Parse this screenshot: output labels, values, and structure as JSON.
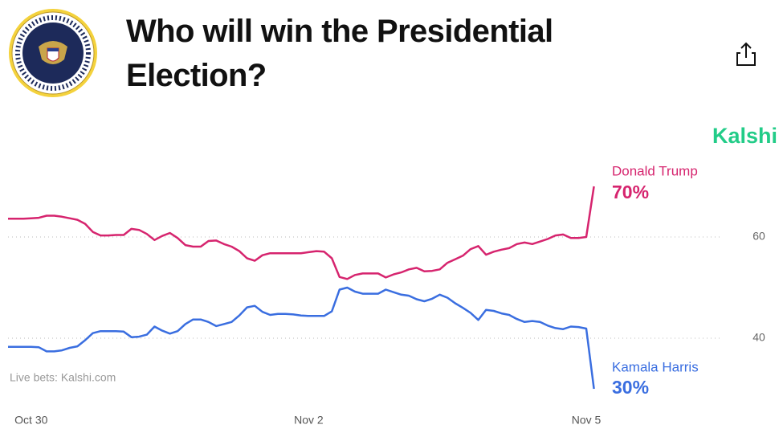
{
  "chart_data": {
    "type": "line",
    "title": "Who will win the Presidential Election?",
    "brand": "Kalshi",
    "annotation": "Live bets: Kalshi.com",
    "categories": [
      null,
      null,
      null,
      "Oct 30",
      null,
      null,
      null,
      null,
      null,
      null,
      null,
      null,
      null,
      null,
      null,
      null,
      null,
      null,
      null,
      null,
      null,
      null,
      null,
      null,
      null,
      null,
      null,
      null,
      null,
      null,
      null,
      null,
      null,
      null,
      null,
      null,
      null,
      null,
      null,
      "Nov 2",
      null,
      null,
      null,
      null,
      null,
      null,
      null,
      null,
      null,
      null,
      null,
      null,
      null,
      null,
      null,
      null,
      null,
      null,
      null,
      null,
      null,
      null,
      null,
      null,
      null,
      null,
      null,
      null,
      null,
      null,
      null,
      null,
      null,
      null,
      null,
      "Nov 5",
      null
    ],
    "series": [
      {
        "name": "Donald Trump",
        "color": "#d6246e",
        "values": [
          63.6,
          63.6,
          63.6,
          63.7,
          63.8,
          64.2,
          64.2,
          64,
          63.7,
          63.4,
          62.6,
          61,
          60.3,
          60.3,
          60.4,
          60.4,
          61.6,
          61.4,
          60.6,
          59.4,
          60.2,
          60.8,
          59.8,
          58.4,
          58.1,
          58.1,
          59.2,
          59.3,
          58.6,
          58.1,
          57.2,
          55.8,
          55.3,
          56.4,
          56.8,
          56.8,
          56.8,
          56.8,
          56.8,
          57,
          57.2,
          57.1,
          55.8,
          52.1,
          51.7,
          52.5,
          52.8,
          52.8,
          52.8,
          52,
          52.6,
          53,
          53.6,
          53.9,
          53.2,
          53.3,
          53.6,
          54.9,
          55.6,
          56.3,
          57.6,
          58.2,
          56.5,
          57.1,
          57.5,
          57.8,
          58.6,
          58.9,
          58.6,
          59.1,
          59.6,
          60.3,
          60.5,
          59.8,
          59.8,
          60,
          70
        ],
        "value_labels": [
          null,
          null,
          null,
          null,
          null,
          null,
          null,
          null,
          null,
          null,
          null,
          null,
          null,
          null,
          null,
          null,
          null,
          null,
          null,
          null,
          null,
          null,
          null,
          null,
          null,
          null,
          null,
          null,
          null,
          null,
          null,
          null,
          null,
          null,
          null,
          null,
          null,
          null,
          null,
          null,
          null,
          null,
          null,
          null,
          null,
          null,
          null,
          null,
          null,
          null,
          null,
          null,
          null,
          null,
          null,
          null,
          null,
          null,
          null,
          null,
          null,
          null,
          null,
          null,
          null,
          null,
          null,
          null,
          null,
          null,
          null,
          null,
          null,
          null,
          null,
          null,
          "70%"
        ]
      },
      {
        "name": "Kamala Harris",
        "color": "#3a6ee0",
        "values": [
          38.3,
          38.3,
          38.3,
          38.3,
          38.2,
          37.4,
          37.4,
          37.6,
          38.1,
          38.4,
          39.6,
          41,
          41.4,
          41.4,
          41.4,
          41.3,
          40.2,
          40.3,
          40.7,
          42.3,
          41.5,
          40.9,
          41.4,
          42.8,
          43.7,
          43.7,
          43.2,
          42.4,
          42.8,
          43.2,
          44.5,
          46.1,
          46.4,
          45.2,
          44.6,
          44.8,
          44.8,
          44.7,
          44.5,
          44.4,
          44.4,
          44.4,
          45.3,
          49.6,
          50,
          49.2,
          48.8,
          48.8,
          48.8,
          49.6,
          49.1,
          48.6,
          48.4,
          47.7,
          47.3,
          47.8,
          48.6,
          48,
          46.9,
          46,
          45,
          43.6,
          45.6,
          45.4,
          44.9,
          44.6,
          43.8,
          43.2,
          43.4,
          43.2,
          42.5,
          42,
          41.8,
          42.3,
          42.2,
          41.9,
          30
        ],
        "value_labels": [
          null,
          null,
          null,
          null,
          null,
          null,
          null,
          null,
          null,
          null,
          null,
          null,
          null,
          null,
          null,
          null,
          null,
          null,
          null,
          null,
          null,
          null,
          null,
          null,
          null,
          null,
          null,
          null,
          null,
          null,
          null,
          null,
          null,
          null,
          null,
          null,
          null,
          null,
          null,
          null,
          null,
          null,
          null,
          null,
          null,
          null,
          null,
          null,
          null,
          null,
          null,
          null,
          null,
          null,
          null,
          null,
          null,
          null,
          null,
          null,
          null,
          null,
          null,
          null,
          null,
          null,
          null,
          null,
          null,
          null,
          null,
          null,
          null,
          null,
          null,
          null,
          "30%"
        ]
      }
    ],
    "ylim": [
      28,
      78
    ],
    "yticks": [
      40,
      60
    ],
    "grid": true
  }
}
